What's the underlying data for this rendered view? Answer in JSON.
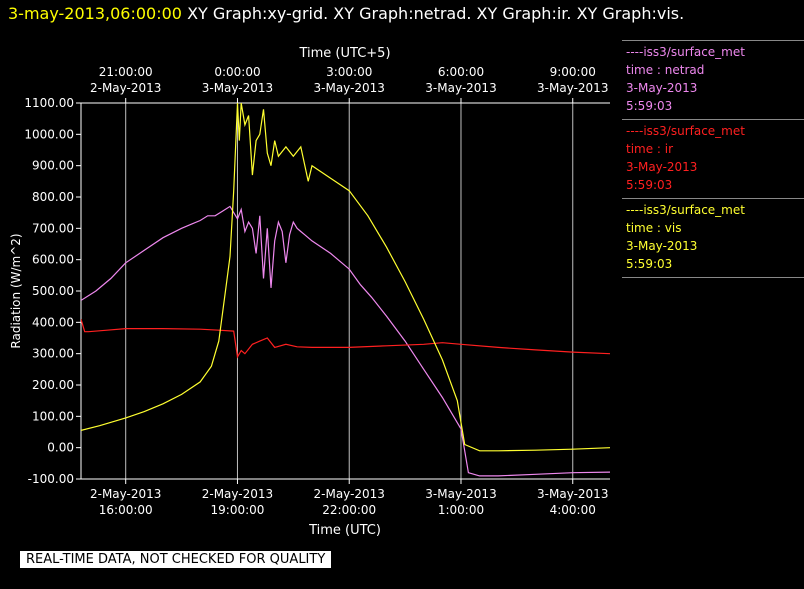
{
  "title": {
    "date": "3-may-2013,06:00:00",
    "graphs": "XY Graph:xy-grid.  XY Graph:netrad.  XY Graph:ir.  XY Graph:vis."
  },
  "legend": [
    {
      "name": "----iss3/surface_met",
      "field": "time : netrad",
      "date": "3-May-2013",
      "time": "5:59:03",
      "color": "#ee88ee"
    },
    {
      "name": "----iss3/surface_met",
      "field": "time : ir",
      "date": "3-May-2013",
      "time": "5:59:03",
      "color": "#ff2020"
    },
    {
      "name": "----iss3/surface_met",
      "field": "time : vis",
      "date": "3-May-2013",
      "time": "5:59:03",
      "color": "#ffff30"
    }
  ],
  "disclaimer": "REAL-TIME DATA, NOT CHECKED FOR QUALITY",
  "chart_data": {
    "type": "line",
    "ylabel": "Radiation (W/m^2)",
    "xlabel": "Time (UTC)",
    "xlabel_top": "Time (UTC+5)",
    "ylim": [
      -100,
      1100
    ],
    "xlim_hours_utc": [
      14.8,
      29.0
    ],
    "yticks": [
      "-100.00",
      "0.00",
      "100.00",
      "200.00",
      "300.00",
      "400.00",
      "500.00",
      "600.00",
      "700.00",
      "800.00",
      "900.00",
      "1000.00",
      "1100.00"
    ],
    "yticks_values": [
      -100,
      0,
      100,
      200,
      300,
      400,
      500,
      600,
      700,
      800,
      900,
      1000,
      1100
    ],
    "xticks_bottom": [
      {
        "h": 16,
        "date": "2-May-2013",
        "time": "16:00:00"
      },
      {
        "h": 19,
        "date": "2-May-2013",
        "time": "19:00:00"
      },
      {
        "h": 22,
        "date": "2-May-2013",
        "time": "22:00:00"
      },
      {
        "h": 25,
        "date": "3-May-2013",
        "time": "1:00:00"
      },
      {
        "h": 28,
        "date": "3-May-2013",
        "time": "4:00:00"
      }
    ],
    "xticks_top": [
      {
        "h": 16,
        "time": "21:00:00",
        "date": "2-May-2013"
      },
      {
        "h": 19,
        "time": "0:00:00",
        "date": "3-May-2013"
      },
      {
        "h": 22,
        "time": "3:00:00",
        "date": "3-May-2013"
      },
      {
        "h": 25,
        "time": "6:00:00",
        "date": "3-May-2013"
      },
      {
        "h": 28,
        "time": "9:00:00",
        "date": "3-May-2013"
      }
    ],
    "grid": true,
    "series": [
      {
        "name": "netrad",
        "color": "#ee88ee",
        "x": [
          14.8,
          15.2,
          15.6,
          16.0,
          16.5,
          17.0,
          17.5,
          17.8,
          18.0,
          18.2,
          18.4,
          18.6,
          18.8,
          19.0,
          19.1,
          19.2,
          19.3,
          19.4,
          19.5,
          19.6,
          19.7,
          19.8,
          19.9,
          20.0,
          20.1,
          20.2,
          20.3,
          20.4,
          20.5,
          20.6,
          20.7,
          20.8,
          21.0,
          21.5,
          22.0,
          22.3,
          22.6,
          23.0,
          23.5,
          24.0,
          24.5,
          25.0,
          25.2,
          25.5,
          26.0,
          27.0,
          28.0,
          29.0
        ],
        "y": [
          470,
          500,
          540,
          590,
          630,
          670,
          700,
          715,
          725,
          740,
          740,
          755,
          770,
          730,
          760,
          690,
          720,
          700,
          620,
          740,
          540,
          700,
          510,
          660,
          720,
          690,
          590,
          680,
          720,
          700,
          690,
          680,
          660,
          620,
          570,
          520,
          480,
          420,
          340,
          250,
          160,
          60,
          -80,
          -90,
          -90,
          -85,
          -80,
          -78
        ]
      },
      {
        "name": "ir",
        "color": "#ff2020",
        "x": [
          14.8,
          14.9,
          15.0,
          15.5,
          16.0,
          17.0,
          18.0,
          18.5,
          18.9,
          19.0,
          19.1,
          19.2,
          19.4,
          19.6,
          19.8,
          20.0,
          20.3,
          20.6,
          21.0,
          22.0,
          23.0,
          24.0,
          24.5,
          25.0,
          26.0,
          27.0,
          28.0,
          29.0
        ],
        "y": [
          410,
          370,
          370,
          375,
          380,
          380,
          378,
          375,
          372,
          290,
          310,
          300,
          330,
          340,
          350,
          320,
          330,
          322,
          320,
          320,
          325,
          330,
          335,
          330,
          320,
          312,
          305,
          300
        ]
      },
      {
        "name": "vis",
        "color": "#ffff30",
        "x": [
          14.8,
          15.3,
          16.0,
          16.5,
          17.0,
          17.5,
          18.0,
          18.3,
          18.5,
          18.7,
          18.8,
          18.9,
          19.0,
          19.05,
          19.1,
          19.2,
          19.3,
          19.4,
          19.5,
          19.6,
          19.7,
          19.8,
          19.9,
          20.0,
          20.1,
          20.3,
          20.5,
          20.7,
          20.9,
          21.0,
          21.5,
          22.0,
          22.5,
          23.0,
          23.5,
          24.0,
          24.5,
          24.9,
          25.1,
          25.5,
          26.0,
          27.0,
          28.0,
          29.0
        ],
        "y": [
          55,
          70,
          95,
          115,
          140,
          170,
          210,
          260,
          340,
          520,
          610,
          820,
          1100,
          980,
          1100,
          1030,
          1060,
          870,
          980,
          1000,
          1080,
          940,
          900,
          980,
          930,
          960,
          930,
          960,
          850,
          900,
          860,
          820,
          740,
          640,
          530,
          410,
          280,
          150,
          10,
          -10,
          -10,
          -8,
          -5,
          0
        ]
      }
    ]
  }
}
